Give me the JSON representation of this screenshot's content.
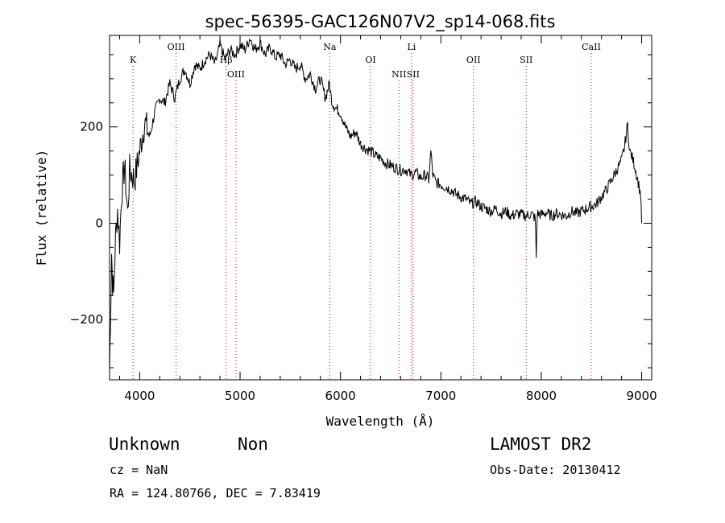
{
  "chart_data": {
    "type": "line",
    "title": "spec-56395-GAC126N07V2_sp14-068.fits",
    "xlabel": "Wavelength (Å)",
    "ylabel": "Flux (relative)",
    "xlim": [
      3700,
      9100
    ],
    "ylim": [
      -325,
      390
    ],
    "x_ticks": [
      4000,
      5000,
      6000,
      7000,
      8000,
      9000
    ],
    "y_ticks": [
      -200,
      0,
      200
    ],
    "grid": false,
    "legend": "none",
    "line_color": "#000000",
    "marker_color": "#cc0000",
    "series": [
      {
        "x": [
          3700,
          3710,
          3720,
          3730,
          3740,
          3760,
          3780,
          3800,
          3820,
          3850,
          3880,
          3900,
          3950,
          4000,
          4050,
          4100,
          4150,
          4200,
          4250,
          4300,
          4350,
          4400,
          4450,
          4500,
          4550,
          4600,
          4650,
          4700,
          4750,
          4800,
          4850,
          4900,
          4950,
          5000,
          5050,
          5100,
          5150,
          5200,
          5250,
          5300,
          5350,
          5400,
          5450,
          5500,
          5550,
          5600,
          5650,
          5700,
          5750,
          5800,
          5850,
          5890,
          5900,
          5920,
          5950,
          6000,
          6050,
          6100,
          6150,
          6200,
          6250,
          6300,
          6350,
          6400,
          6450,
          6500,
          6550,
          6600,
          6650,
          6700,
          6750,
          6800,
          6850,
          6880,
          6900,
          6920,
          6950,
          7000,
          7050,
          7100,
          7150,
          7200,
          7250,
          7300,
          7350,
          7400,
          7450,
          7500,
          7550,
          7600,
          7650,
          7700,
          7750,
          7800,
          7850,
          7900,
          7940,
          7950,
          7960,
          8000,
          8050,
          8100,
          8150,
          8200,
          8250,
          8300,
          8350,
          8400,
          8450,
          8500,
          8550,
          8600,
          8650,
          8700,
          8750,
          8800,
          8830,
          8860,
          8880,
          8900,
          8930,
          8960,
          8990,
          9000
        ],
        "y": [
          -310,
          -190,
          -60,
          -120,
          -150,
          -30,
          30,
          -40,
          60,
          120,
          20,
          110,
          90,
          150,
          210,
          180,
          230,
          260,
          250,
          290,
          260,
          300,
          320,
          290,
          330,
          320,
          340,
          350,
          330,
          370,
          340,
          360,
          350,
          370,
          360,
          385,
          360,
          375,
          350,
          365,
          345,
          350,
          330,
          340,
          320,
          330,
          300,
          310,
          280,
          300,
          260,
          290,
          270,
          250,
          240,
          230,
          200,
          180,
          190,
          165,
          155,
          150,
          140,
          135,
          125,
          120,
          115,
          110,
          112,
          100,
          105,
          95,
          100,
          90,
          150,
          100,
          85,
          80,
          75,
          70,
          60,
          55,
          50,
          40,
          45,
          35,
          30,
          25,
          30,
          20,
          25,
          15,
          20,
          18,
          15,
          20,
          10,
          -70,
          20,
          18,
          22,
          15,
          20,
          18,
          15,
          25,
          20,
          25,
          30,
          35,
          40,
          55,
          70,
          90,
          110,
          130,
          160,
          205,
          150,
          140,
          120,
          90,
          60,
          0
        ]
      }
    ],
    "line_markers": [
      {
        "label": "K",
        "x": 3934,
        "row": 0
      },
      {
        "label": "OIII",
        "x": 4363,
        "row": 2
      },
      {
        "label": "Hβ",
        "x": 4861,
        "row": 0
      },
      {
        "label": "OIII",
        "x": 4959,
        "row": 1
      },
      {
        "label": "Na",
        "x": 5893,
        "row": 2
      },
      {
        "label": "OI",
        "x": 6300,
        "row": 0
      },
      {
        "label": "NII",
        "x": 6583,
        "row": 1
      },
      {
        "label": "Li",
        "x": 6708,
        "row": 2
      },
      {
        "label": "SII",
        "x": 6724,
        "row": 1
      },
      {
        "label": "OII",
        "x": 7325,
        "row": 0
      },
      {
        "label": "SII",
        "x": 7850,
        "row": 0
      },
      {
        "label": "CaII",
        "x": 8498,
        "row": 2
      }
    ]
  },
  "info": {
    "class": "Unknown",
    "subclass": "Non",
    "survey": "LAMOST DR2",
    "cz": "cz = NaN",
    "obs_date": "Obs-Date: 20130412",
    "coords": "RA = 124.80766, DEC =   7.83419"
  }
}
